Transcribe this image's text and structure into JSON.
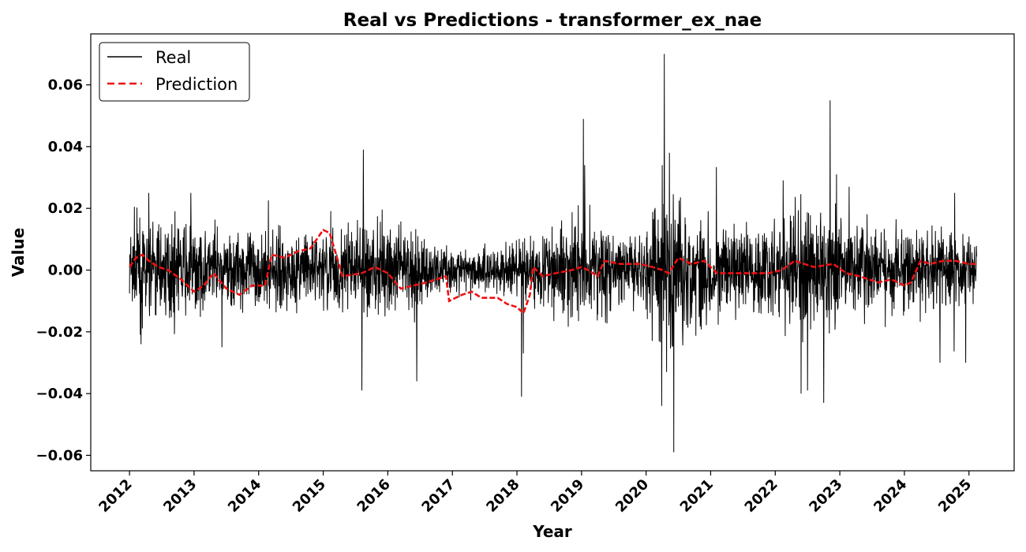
{
  "chart_data": {
    "type": "line",
    "title": "Real vs Predictions - transformer_ex_nae",
    "xlabel": "Year",
    "ylabel": "Value",
    "x_ticks": [
      "2012",
      "2013",
      "2014",
      "2015",
      "2016",
      "2017",
      "2018",
      "2019",
      "2020",
      "2021",
      "2022",
      "2023",
      "2024",
      "2025"
    ],
    "y_ticks": [
      "−0.06",
      "−0.04",
      "−0.02",
      "0.00",
      "0.02",
      "0.04",
      "0.06"
    ],
    "xlim": [
      2011.4,
      2025.7
    ],
    "ylim": [
      -0.065,
      0.0765
    ],
    "grid": false,
    "legend_position": "top-left",
    "legend": [
      "Real",
      "Prediction"
    ],
    "series": [
      {
        "name": "Real",
        "color": "#000000",
        "style": "solid",
        "x_start": 2012.0,
        "x_end": 2025.12,
        "band_profile": [
          [
            2012.0,
            0.014
          ],
          [
            2012.5,
            0.013
          ],
          [
            2013.0,
            0.012
          ],
          [
            2013.5,
            0.011
          ],
          [
            2014.0,
            0.011
          ],
          [
            2014.5,
            0.01
          ],
          [
            2015.0,
            0.011
          ],
          [
            2015.5,
            0.013
          ],
          [
            2016.0,
            0.014
          ],
          [
            2016.5,
            0.01
          ],
          [
            2017.0,
            0.006
          ],
          [
            2017.5,
            0.007
          ],
          [
            2018.0,
            0.008
          ],
          [
            2018.5,
            0.011
          ],
          [
            2019.0,
            0.016
          ],
          [
            2019.5,
            0.011
          ],
          [
            2020.0,
            0.011
          ],
          [
            2020.3,
            0.026
          ],
          [
            2020.6,
            0.02
          ],
          [
            2021.0,
            0.013
          ],
          [
            2021.5,
            0.012
          ],
          [
            2022.0,
            0.015
          ],
          [
            2022.5,
            0.02
          ],
          [
            2023.0,
            0.015
          ],
          [
            2023.5,
            0.011
          ],
          [
            2024.0,
            0.01
          ],
          [
            2024.5,
            0.011
          ],
          [
            2025.1,
            0.011
          ]
        ],
        "spikes": [
          [
            2012.18,
            -0.024
          ],
          [
            2012.3,
            0.025
          ],
          [
            2012.95,
            0.025
          ],
          [
            2013.43,
            -0.025
          ],
          [
            2015.62,
            0.039
          ],
          [
            2015.6,
            -0.039
          ],
          [
            2016.45,
            -0.036
          ],
          [
            2018.07,
            -0.041
          ],
          [
            2018.1,
            -0.027
          ],
          [
            2019.03,
            0.049
          ],
          [
            2019.05,
            0.034
          ],
          [
            2020.15,
            0.011
          ],
          [
            2020.24,
            -0.044
          ],
          [
            2020.25,
            0.034
          ],
          [
            2020.28,
            0.07
          ],
          [
            2020.43,
            -0.059
          ],
          [
            2020.36,
            0.038
          ],
          [
            2022.4,
            -0.04
          ],
          [
            2022.5,
            -0.039
          ],
          [
            2022.85,
            0.055
          ],
          [
            2022.75,
            -0.043
          ],
          [
            2022.95,
            0.031
          ],
          [
            2024.55,
            -0.03
          ],
          [
            2024.95,
            -0.03
          ],
          [
            2024.78,
            0.025
          ]
        ]
      },
      {
        "name": "Prediction",
        "color": "#ee1111",
        "style": "dashed",
        "points": [
          [
            2012.0,
            0.001
          ],
          [
            2012.1,
            0.004
          ],
          [
            2012.2,
            0.005
          ],
          [
            2012.3,
            0.003
          ],
          [
            2012.45,
            0.001
          ],
          [
            2012.6,
            0.0
          ],
          [
            2012.8,
            -0.003
          ],
          [
            2013.0,
            -0.007
          ],
          [
            2013.15,
            -0.005
          ],
          [
            2013.3,
            -0.001
          ],
          [
            2013.5,
            -0.006
          ],
          [
            2013.7,
            -0.008
          ],
          [
            2013.9,
            -0.005
          ],
          [
            2014.1,
            -0.005
          ],
          [
            2014.2,
            0.005
          ],
          [
            2014.4,
            0.004
          ],
          [
            2014.6,
            0.006
          ],
          [
            2014.8,
            0.007
          ],
          [
            2015.0,
            0.013
          ],
          [
            2015.1,
            0.012
          ],
          [
            2015.3,
            -0.002
          ],
          [
            2015.6,
            -0.001
          ],
          [
            2015.8,
            0.001
          ],
          [
            2016.0,
            -0.001
          ],
          [
            2016.2,
            -0.006
          ],
          [
            2016.4,
            -0.005
          ],
          [
            2016.6,
            -0.004
          ],
          [
            2016.9,
            -0.002
          ],
          [
            2016.95,
            -0.01
          ],
          [
            2017.15,
            -0.008
          ],
          [
            2017.3,
            -0.007
          ],
          [
            2017.45,
            -0.009
          ],
          [
            2017.7,
            -0.009
          ],
          [
            2017.85,
            -0.011
          ],
          [
            2018.0,
            -0.012
          ],
          [
            2018.1,
            -0.014
          ],
          [
            2018.2,
            -0.008
          ],
          [
            2018.25,
            0.001
          ],
          [
            2018.4,
            -0.002
          ],
          [
            2018.6,
            -0.001
          ],
          [
            2018.85,
            0.0
          ],
          [
            2019.0,
            0.001
          ],
          [
            2019.1,
            0.0
          ],
          [
            2019.25,
            -0.002
          ],
          [
            2019.35,
            0.003
          ],
          [
            2019.6,
            0.002
          ],
          [
            2019.9,
            0.002
          ],
          [
            2020.1,
            0.001
          ],
          [
            2020.25,
            0.0
          ],
          [
            2020.35,
            -0.001
          ],
          [
            2020.5,
            0.004
          ],
          [
            2020.7,
            0.002
          ],
          [
            2020.9,
            0.003
          ],
          [
            2021.1,
            -0.001
          ],
          [
            2021.3,
            -0.001
          ],
          [
            2021.6,
            -0.001
          ],
          [
            2021.9,
            -0.001
          ],
          [
            2022.1,
            0.0
          ],
          [
            2022.3,
            0.003
          ],
          [
            2022.6,
            0.001
          ],
          [
            2022.9,
            0.002
          ],
          [
            2023.1,
            -0.001
          ],
          [
            2023.3,
            -0.002
          ],
          [
            2023.6,
            -0.004
          ],
          [
            2023.8,
            -0.003
          ],
          [
            2024.0,
            -0.005
          ],
          [
            2024.1,
            -0.004
          ],
          [
            2024.25,
            0.003
          ],
          [
            2024.4,
            0.002
          ],
          [
            2024.6,
            0.003
          ],
          [
            2024.8,
            0.003
          ],
          [
            2025.0,
            0.002
          ],
          [
            2025.12,
            0.002
          ]
        ]
      }
    ]
  }
}
